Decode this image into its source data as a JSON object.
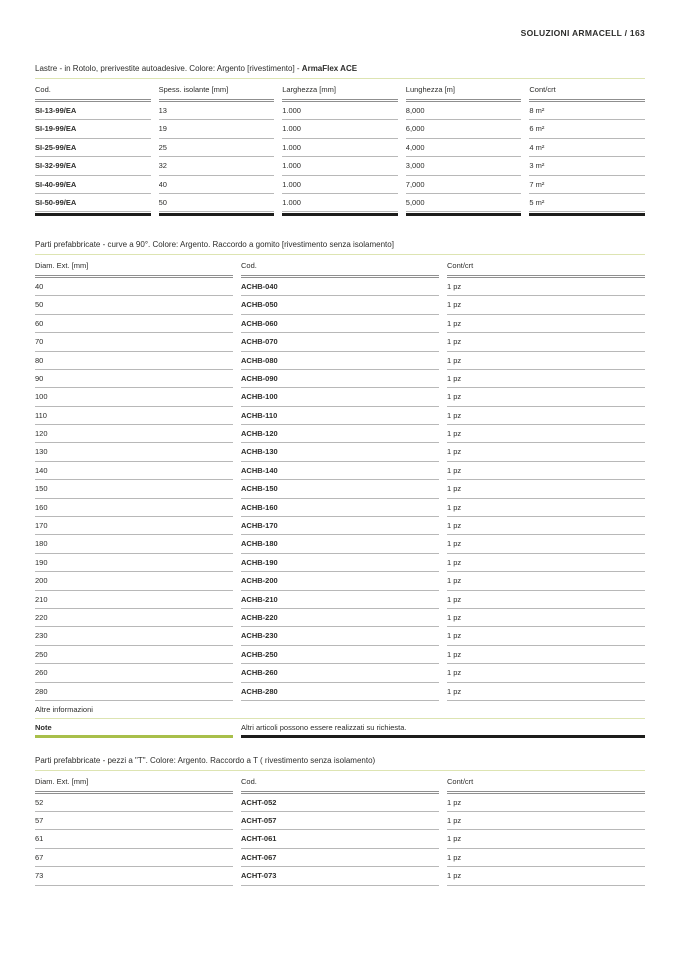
{
  "page": {
    "header": "SOLUZIONI ARMACELL / 163"
  },
  "colors": {
    "pale_green_rule": "#dde4b2",
    "note_green_bar": "#a8bf4a",
    "black_bar": "#1d1d1b"
  },
  "tables": [
    {
      "title": "Lastre - in Rotolo, prerivestite autoadesive. Colore: Argento [rivestimento] - ",
      "title_bold": "ArmaFlex ACE",
      "columns": [
        "Cod.",
        "Spess. isolante [mm]",
        "Larghezza [mm]",
        "Lunghezza [m]",
        "Cont/crt"
      ],
      "rows": [
        [
          "SI-13-99/EA",
          "13",
          "1.000",
          "8,000",
          "8 m²"
        ],
        [
          "SI-19-99/EA",
          "19",
          "1.000",
          "6,000",
          "6 m²"
        ],
        [
          "SI-25-99/EA",
          "25",
          "1.000",
          "4,000",
          "4 m²"
        ],
        [
          "SI-32-99/EA",
          "32",
          "1.000",
          "3,000",
          "3 m²"
        ],
        [
          "SI-40-99/EA",
          "40",
          "1.000",
          "7,000",
          "7 m²"
        ],
        [
          "SI-50-99/EA",
          "50",
          "1.000",
          "5,000",
          "5 m²"
        ]
      ]
    },
    {
      "title": "Parti prefabbricate - curve a 90°. Colore: Argento. Raccordo a gomito [rivestimento senza isolamento]",
      "columns": [
        "Diam. Ext. [mm]",
        "Cod.",
        "Cont/crt"
      ],
      "rows": [
        [
          "40",
          "ACHB-040",
          "1 pz"
        ],
        [
          "50",
          "ACHB-050",
          "1 pz"
        ],
        [
          "60",
          "ACHB-060",
          "1 pz"
        ],
        [
          "70",
          "ACHB-070",
          "1 pz"
        ],
        [
          "80",
          "ACHB-080",
          "1 pz"
        ],
        [
          "90",
          "ACHB-090",
          "1 pz"
        ],
        [
          "100",
          "ACHB-100",
          "1 pz"
        ],
        [
          "110",
          "ACHB-110",
          "1 pz"
        ],
        [
          "120",
          "ACHB-120",
          "1 pz"
        ],
        [
          "130",
          "ACHB-130",
          "1 pz"
        ],
        [
          "140",
          "ACHB-140",
          "1 pz"
        ],
        [
          "150",
          "ACHB-150",
          "1 pz"
        ],
        [
          "160",
          "ACHB-160",
          "1 pz"
        ],
        [
          "170",
          "ACHB-170",
          "1 pz"
        ],
        [
          "180",
          "ACHB-180",
          "1 pz"
        ],
        [
          "190",
          "ACHB-190",
          "1 pz"
        ],
        [
          "200",
          "ACHB-200",
          "1 pz"
        ],
        [
          "210",
          "ACHB-210",
          "1 pz"
        ],
        [
          "220",
          "ACHB-220",
          "1 pz"
        ],
        [
          "230",
          "ACHB-230",
          "1 pz"
        ],
        [
          "250",
          "ACHB-250",
          "1 pz"
        ],
        [
          "260",
          "ACHB-260",
          "1 pz"
        ],
        [
          "280",
          "ACHB-280",
          "1 pz"
        ]
      ],
      "footer": {
        "section_label": "Altre informazioni",
        "note_label": "Note",
        "note_text": "Altri articoli possono essere realizzati su richiesta."
      }
    },
    {
      "title": "Parti prefabbricate - pezzi a \"T\". Colore: Argento. Raccordo a T ( rivestimento senza isolamento)",
      "columns": [
        "Diam. Ext. [mm]",
        "Cod.",
        "Cont/crt"
      ],
      "rows": [
        [
          "52",
          "ACHT-052",
          "1 pz"
        ],
        [
          "57",
          "ACHT-057",
          "1 pz"
        ],
        [
          "61",
          "ACHT-061",
          "1 pz"
        ],
        [
          "67",
          "ACHT-067",
          "1 pz"
        ],
        [
          "73",
          "ACHT-073",
          "1 pz"
        ]
      ]
    }
  ]
}
